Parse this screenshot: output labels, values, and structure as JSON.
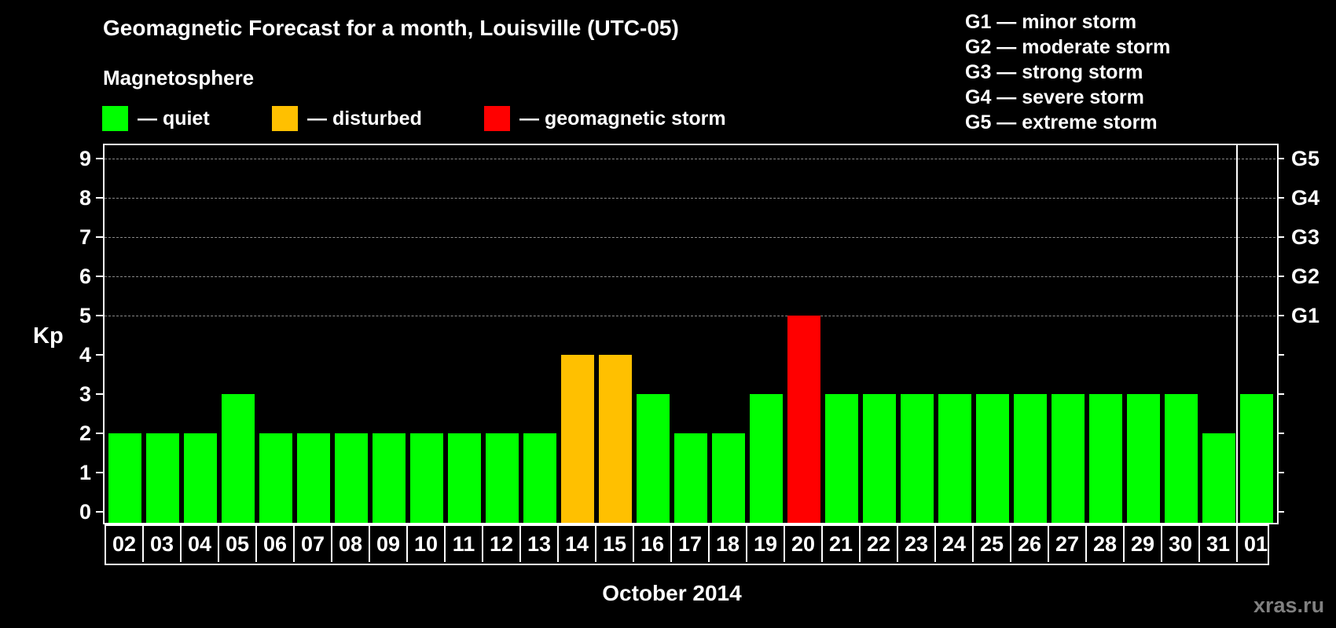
{
  "header": {
    "title": "Geomagnetic Forecast for a month, Louisville (UTC-05)",
    "subtitle": "Magnetosphere"
  },
  "legend": {
    "items": [
      {
        "label": "— quiet",
        "color": "#00ff00"
      },
      {
        "label": "— disturbed",
        "color": "#ffc000"
      },
      {
        "label": "— geomagnetic storm",
        "color": "#ff0000"
      }
    ]
  },
  "storm_scale": [
    "G1 — minor storm",
    "G2 — moderate storm",
    "G3 — strong storm",
    "G4 — severe storm",
    "G5 — extreme storm"
  ],
  "axes": {
    "y_title": "Kp",
    "y_ticks": [
      "0",
      "1",
      "2",
      "3",
      "4",
      "5",
      "6",
      "7",
      "8",
      "9"
    ],
    "g_ticks": [
      {
        "label": "G1",
        "kp": 5
      },
      {
        "label": "G2",
        "kp": 6
      },
      {
        "label": "G3",
        "kp": 7
      },
      {
        "label": "G4",
        "kp": 8
      },
      {
        "label": "G5",
        "kp": 9
      }
    ],
    "x_title": "October 2014"
  },
  "watermark": "xras.ru",
  "colors": {
    "quiet": "#00ff00",
    "disturbed": "#ffc000",
    "storm": "#ff0000",
    "grid": "#888888"
  },
  "chart_data": {
    "type": "bar",
    "title": "Geomagnetic Forecast for a month, Louisville (UTC-05)",
    "xlabel": "October 2014",
    "ylabel": "Kp",
    "ylim": [
      0,
      9
    ],
    "grid": "dashed horizontal at Kp 5-9",
    "legend_position": "top",
    "categories": [
      "02",
      "03",
      "04",
      "05",
      "06",
      "07",
      "08",
      "09",
      "10",
      "11",
      "12",
      "13",
      "14",
      "15",
      "16",
      "17",
      "18",
      "19",
      "20",
      "21",
      "22",
      "23",
      "24",
      "25",
      "26",
      "27",
      "28",
      "29",
      "30",
      "31",
      "01"
    ],
    "values": [
      2,
      2,
      2,
      3,
      2,
      2,
      2,
      2,
      2,
      2,
      2,
      2,
      4,
      4,
      3,
      2,
      2,
      3,
      5,
      3,
      3,
      3,
      3,
      3,
      3,
      3,
      3,
      3,
      3,
      2,
      3
    ],
    "status": [
      "quiet",
      "quiet",
      "quiet",
      "quiet",
      "quiet",
      "quiet",
      "quiet",
      "quiet",
      "quiet",
      "quiet",
      "quiet",
      "quiet",
      "disturbed",
      "disturbed",
      "quiet",
      "quiet",
      "quiet",
      "quiet",
      "storm",
      "quiet",
      "quiet",
      "quiet",
      "quiet",
      "quiet",
      "quiet",
      "quiet",
      "quiet",
      "quiet",
      "quiet",
      "quiet",
      "quiet"
    ],
    "secondary_axis": {
      "G1": 5,
      "G2": 6,
      "G3": 7,
      "G4": 8,
      "G5": 9
    }
  }
}
